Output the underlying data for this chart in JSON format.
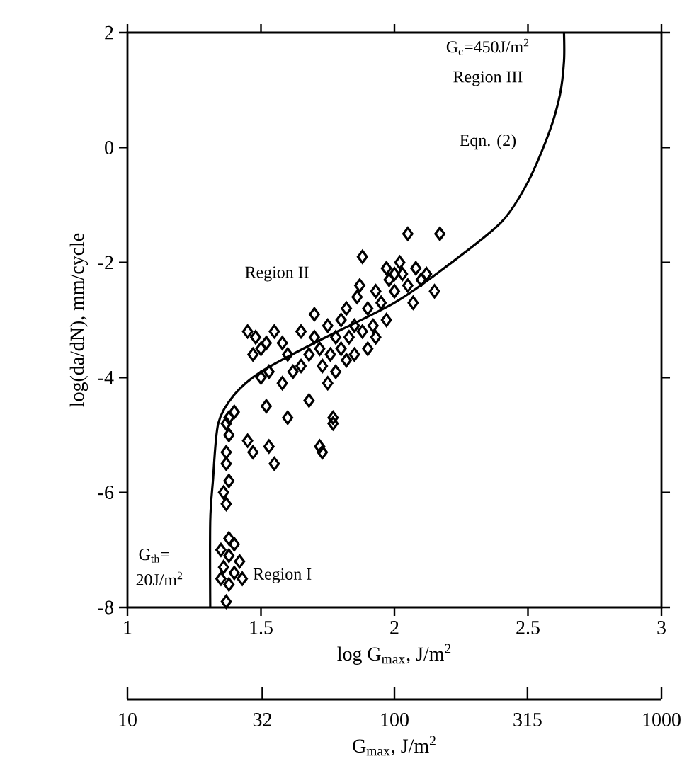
{
  "chart_data": {
    "type": "scatter",
    "xlabel": "log G$_{max}$, J/m$^{2}$",
    "ylabel": "log(da/dN), mm/cycle",
    "x2label": "G$_{max}$, J/m$^{2}$",
    "xlim": [
      1,
      3
    ],
    "ylim": [
      -8,
      2
    ],
    "xticks": [
      1,
      1.5,
      2,
      2.5,
      3
    ],
    "yticks": [
      -8,
      -6,
      -4,
      -2,
      0,
      2
    ],
    "x2lim": [
      10,
      1000
    ],
    "x2ticks": [
      10,
      32,
      100,
      315,
      1000
    ],
    "log": "x2",
    "marker": "diamond",
    "series": [
      {
        "color": "#000000",
        "x": [
          1.37,
          1.38,
          1.35,
          1.4,
          1.42,
          1.38,
          1.36,
          1.4,
          1.38,
          1.43,
          1.35,
          1.37,
          1.36,
          1.38,
          1.37,
          1.37,
          1.38,
          1.37,
          1.4,
          1.38,
          1.45,
          1.47,
          1.53,
          1.55,
          1.72,
          1.73,
          1.52,
          1.6,
          1.68,
          1.77,
          1.77,
          1.45,
          1.48,
          1.5,
          1.47,
          1.52,
          1.55,
          1.58,
          1.6,
          1.5,
          1.53,
          1.58,
          1.62,
          1.65,
          1.68,
          1.7,
          1.72,
          1.7,
          1.75,
          1.73,
          1.76,
          1.78,
          1.8,
          1.82,
          1.8,
          1.83,
          1.85,
          1.86,
          1.88,
          1.87,
          1.9,
          1.92,
          1.93,
          1.95,
          1.97,
          1.98,
          2.0,
          2.02,
          2.03,
          2.05,
          2.08,
          2.1,
          2.12,
          2.15,
          2.17,
          2.07,
          2.05,
          1.97,
          1.75,
          1.78,
          1.82,
          1.9,
          1.65,
          1.85,
          1.88,
          1.93,
          2.0
        ],
        "values": [
          -7.9,
          -7.6,
          -7.5,
          -7.4,
          -7.2,
          -7.1,
          -7.3,
          -6.9,
          -6.8,
          -7.5,
          -7.0,
          -6.2,
          -6.0,
          -5.8,
          -5.5,
          -5.3,
          -5.0,
          -4.8,
          -4.6,
          -4.7,
          -5.1,
          -5.3,
          -5.2,
          -5.5,
          -5.2,
          -5.3,
          -4.5,
          -4.7,
          -4.4,
          -4.7,
          -4.8,
          -3.2,
          -3.3,
          -3.5,
          -3.6,
          -3.4,
          -3.2,
          -3.4,
          -3.6,
          -4.0,
          -3.9,
          -4.1,
          -3.9,
          -3.8,
          -3.6,
          -3.3,
          -3.5,
          -2.9,
          -3.1,
          -3.8,
          -3.6,
          -3.3,
          -3.0,
          -2.8,
          -3.5,
          -3.3,
          -3.1,
          -2.6,
          -1.9,
          -2.4,
          -2.8,
          -3.1,
          -2.5,
          -2.7,
          -2.1,
          -2.3,
          -2.5,
          -2.0,
          -2.2,
          -2.4,
          -2.1,
          -2.3,
          -2.2,
          -2.5,
          -1.5,
          -2.7,
          -1.5,
          -3.0,
          -4.1,
          -3.9,
          -3.7,
          -3.5,
          -3.2,
          -3.6,
          -3.2,
          -3.3,
          -2.2
        ]
      },
      {
        "type": "line",
        "color": "#000000",
        "marker": "none",
        "x": [
          1.31,
          1.31,
          1.32,
          1.34,
          1.4,
          1.5,
          1.7,
          2.0,
          2.2,
          2.4,
          2.5,
          2.58,
          2.62,
          2.635,
          2.635
        ],
        "values": [
          -8,
          -6.5,
          -5.8,
          -4.8,
          -4.3,
          -3.9,
          -3.4,
          -2.7,
          -2.05,
          -1.3,
          -0.6,
          0.27,
          0.92,
          1.5,
          2
        ]
      }
    ],
    "annotations": [
      "Region II",
      "Region I",
      "G$_{th}$=",
      "20J/m$^{2}$",
      "G$_{c}$=450J/m$^{2}$",
      "Region III",
      "Eqn. (2)"
    ]
  }
}
